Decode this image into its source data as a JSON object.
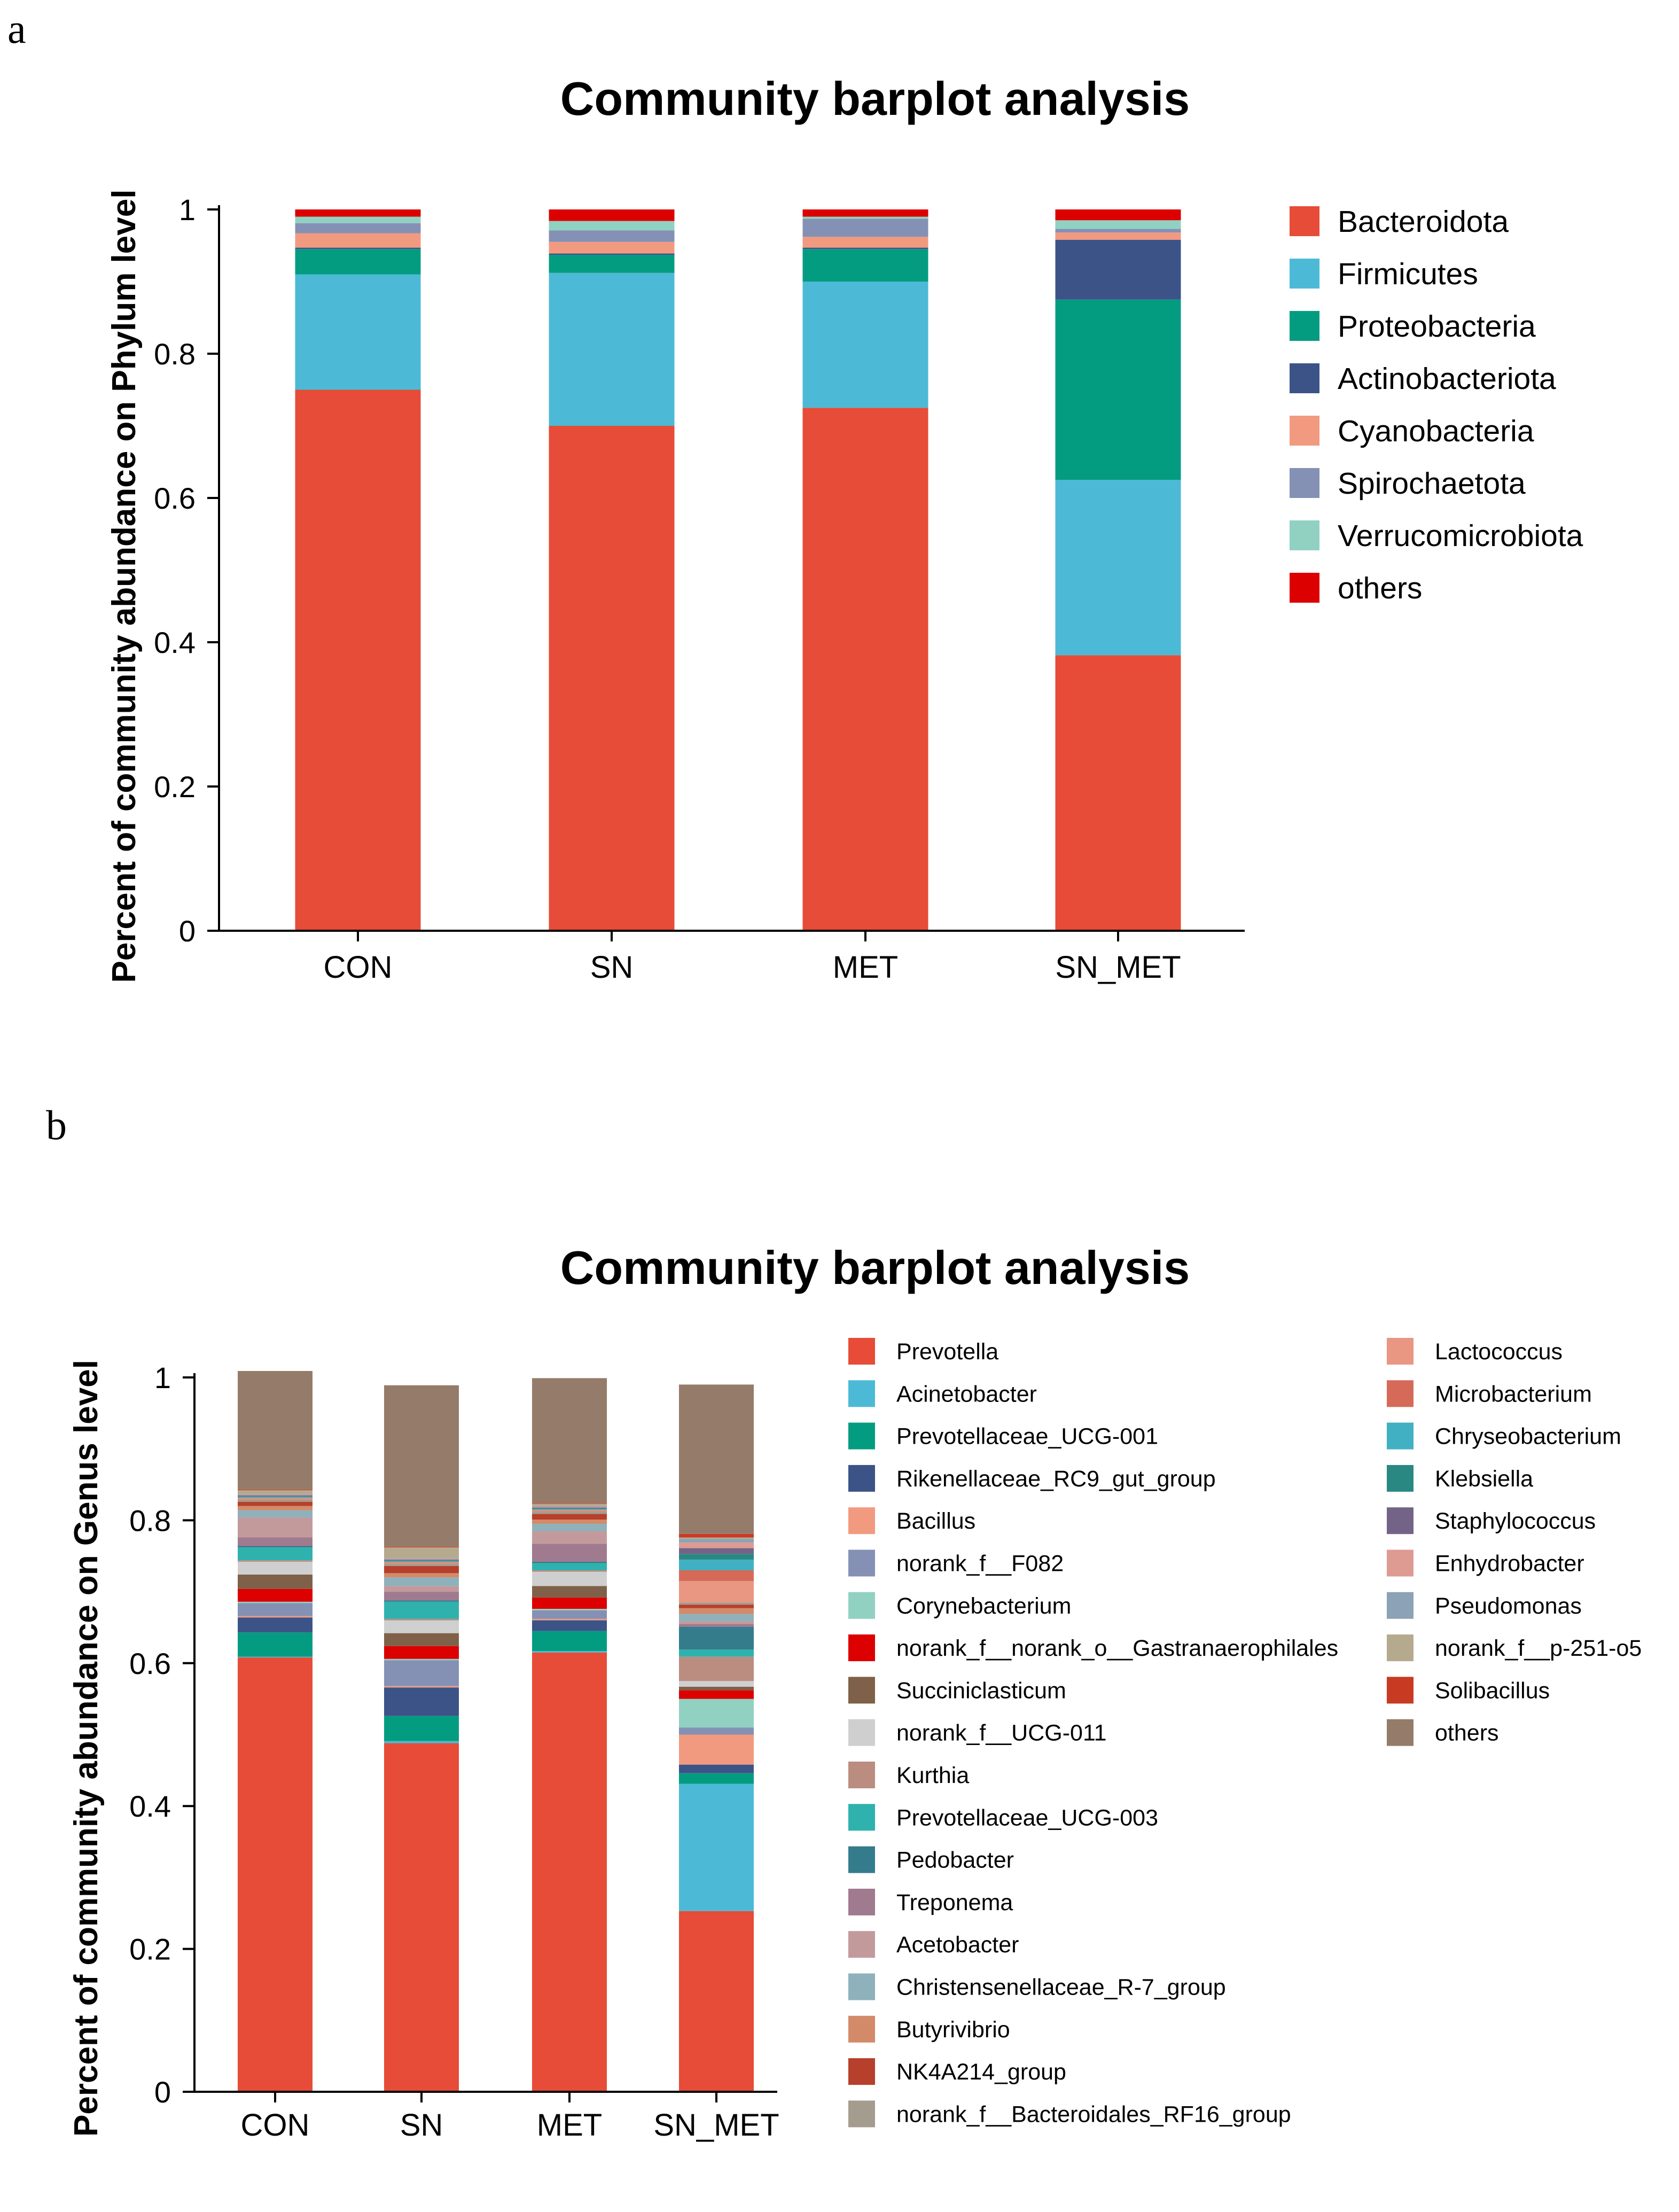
{
  "panels": [
    {
      "label": "a"
    },
    {
      "label": "b"
    }
  ],
  "chart_data": [
    {
      "type": "bar",
      "stacked": true,
      "title": "Community barplot analysis",
      "xlabel": "",
      "ylabel": "Percent of community abundance on Phylum level",
      "ylim": [
        0,
        1
      ],
      "yticks": [
        0,
        0.2,
        0.4,
        0.6,
        0.8,
        1
      ],
      "ytick_labels": [
        "0",
        "0.2",
        "0.4",
        "0.6",
        "0.8",
        "1"
      ],
      "categories": [
        "CON",
        "SN",
        "MET",
        "SN_MET"
      ],
      "legend_position": "right",
      "series": [
        {
          "name": "Bacteroidota",
          "color": "#E64C37",
          "values": [
            0.75,
            0.7,
            0.725,
            0.382
          ]
        },
        {
          "name": "Firmicutes",
          "color": "#4CBAD6",
          "values": [
            0.16,
            0.212,
            0.175,
            0.243
          ]
        },
        {
          "name": "Proteobacteria",
          "color": "#049C80",
          "values": [
            0.035,
            0.025,
            0.045,
            0.25
          ]
        },
        {
          "name": "Actinobacteriota",
          "color": "#3C5388",
          "values": [
            0.002,
            0.002,
            0.002,
            0.083
          ]
        },
        {
          "name": "Cyanobacteria",
          "color": "#F29A7F",
          "values": [
            0.02,
            0.016,
            0.015,
            0.01
          ]
        },
        {
          "name": "Spirochaetota",
          "color": "#8491B4",
          "values": [
            0.014,
            0.016,
            0.025,
            0.005
          ]
        },
        {
          "name": "Verrucomicrobiota",
          "color": "#91D1C2",
          "values": [
            0.009,
            0.013,
            0.003,
            0.012
          ]
        },
        {
          "name": "others",
          "color": "#DC0000",
          "values": [
            0.01,
            0.016,
            0.01,
            0.015
          ]
        }
      ]
    },
    {
      "type": "bar",
      "stacked": true,
      "title": "Community barplot analysis",
      "xlabel": "",
      "ylabel": "Percent of community abundance on Genus level",
      "ylim": [
        0,
        1
      ],
      "yticks": [
        0,
        0.2,
        0.4,
        0.6,
        0.8,
        1
      ],
      "ytick_labels": [
        "0",
        "0.2",
        "0.4",
        "0.6",
        "0.8",
        "1"
      ],
      "categories": [
        "CON",
        "SN",
        "MET",
        "SN_MET"
      ],
      "legend_position": "right",
      "series": [
        {
          "name": "Prevotella",
          "color": "#E64C37",
          "values": [
            0.608,
            0.488,
            0.615,
            0.253
          ]
        },
        {
          "name": "Acinetobacter",
          "color": "#4CBAD6",
          "values": [
            0.001,
            0.003,
            0.002,
            0.178
          ]
        },
        {
          "name": "Prevotellaceae_UCG-001",
          "color": "#049C80",
          "values": [
            0.034,
            0.035,
            0.028,
            0.015
          ]
        },
        {
          "name": "Rikenellaceae_RC9_gut_group",
          "color": "#3C5388",
          "values": [
            0.021,
            0.04,
            0.015,
            0.012
          ]
        },
        {
          "name": "Bacillus",
          "color": "#F29A7F",
          "values": [
            0.002,
            0.002,
            0.002,
            0.042
          ]
        },
        {
          "name": "norank_f__F082",
          "color": "#8491B4",
          "values": [
            0.018,
            0.036,
            0.012,
            0.01
          ]
        },
        {
          "name": "Corynebacterium",
          "color": "#91D1C2",
          "values": [
            0.002,
            0.002,
            0.002,
            0.04
          ]
        },
        {
          "name": "norank_f__norank_o__Gastranaerophilales",
          "color": "#DC0000",
          "values": [
            0.018,
            0.018,
            0.016,
            0.012
          ]
        },
        {
          "name": "Succiniclasticum",
          "color": "#7E6148",
          "values": [
            0.02,
            0.018,
            0.016,
            0.005
          ]
        },
        {
          "name": "norank_f__UCG-011",
          "color": "#CFCFCF",
          "values": [
            0.018,
            0.018,
            0.02,
            0.008
          ]
        },
        {
          "name": "Kurthia",
          "color": "#BB8C80",
          "values": [
            0.002,
            0.002,
            0.002,
            0.034
          ]
        },
        {
          "name": "Prevotellaceae_UCG-003",
          "color": "#2FB2AE",
          "values": [
            0.018,
            0.024,
            0.01,
            0.01
          ]
        },
        {
          "name": "Pedobacter",
          "color": "#347C8C",
          "values": [
            0.002,
            0.002,
            0.002,
            0.032
          ]
        },
        {
          "name": "Treponema",
          "color": "#A07A8E",
          "values": [
            0.012,
            0.012,
            0.025,
            0.004
          ]
        },
        {
          "name": "Acetobacter",
          "color": "#C39A9C",
          "values": [
            0.028,
            0.008,
            0.018,
            0.004
          ]
        },
        {
          "name": "Christensenellaceae_R-7_group",
          "color": "#8EB1BC",
          "values": [
            0.01,
            0.012,
            0.01,
            0.01
          ]
        },
        {
          "name": "Butyrivibrio",
          "color": "#D38A69",
          "values": [
            0.006,
            0.006,
            0.006,
            0.008
          ]
        },
        {
          "name": "NK4A214_group",
          "color": "#B6402B",
          "values": [
            0.006,
            0.01,
            0.008,
            0.005
          ]
        },
        {
          "name": "norank_f__Bacteroidales_RF16_group",
          "color": "#A59C90",
          "values": [
            0.004,
            0.004,
            0.004,
            0.003
          ]
        },
        {
          "name": "Lactococcus",
          "color": "#E99682",
          "values": [
            0.001,
            0.001,
            0.001,
            0.03
          ]
        },
        {
          "name": "Microbacterium",
          "color": "#D66A59",
          "values": [
            0.001,
            0.001,
            0.001,
            0.015
          ]
        },
        {
          "name": "Chryseobacterium",
          "color": "#41B0C2",
          "values": [
            0.001,
            0.001,
            0.001,
            0.015
          ]
        },
        {
          "name": "Klebsiella",
          "color": "#2A8882",
          "values": [
            0.001,
            0.001,
            0.001,
            0.008
          ]
        },
        {
          "name": "Staphylococcus",
          "color": "#736487",
          "values": [
            0.001,
            0.001,
            0.001,
            0.008
          ]
        },
        {
          "name": "Enhydrobacter",
          "color": "#DE9B92",
          "values": [
            0.001,
            0.001,
            0.001,
            0.008
          ]
        },
        {
          "name": "Pseudomonas",
          "color": "#8CA2B6",
          "values": [
            0.001,
            0.001,
            0.001,
            0.005
          ]
        },
        {
          "name": "norank_f__p-251-o5",
          "color": "#B5AA8E",
          "values": [
            0.005,
            0.015,
            0.003,
            0.002
          ]
        },
        {
          "name": "Solibacillus",
          "color": "#C83B22",
          "values": [
            0.001,
            0.001,
            0.001,
            0.005
          ]
        },
        {
          "name": "others",
          "color": "#957B69",
          "values": [
            0.166,
            0.226,
            0.175,
            0.209
          ]
        }
      ]
    }
  ]
}
